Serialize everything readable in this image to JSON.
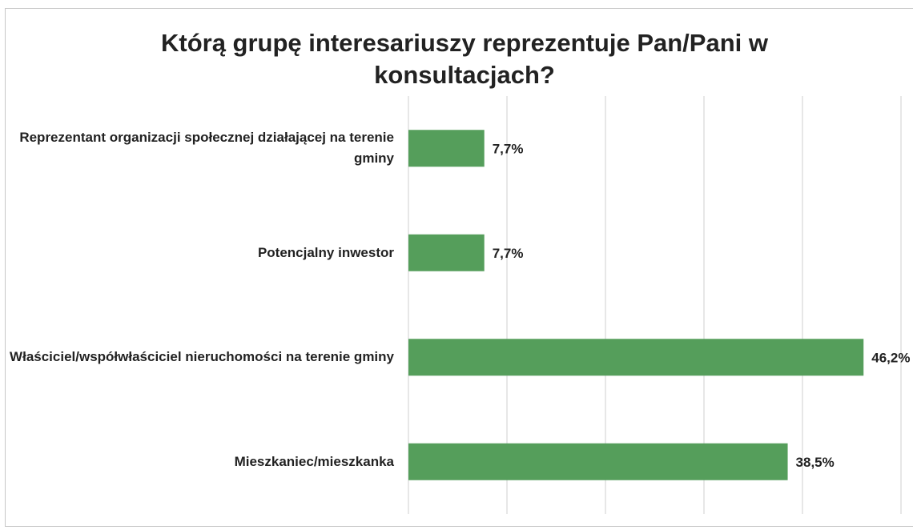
{
  "chart_data": {
    "type": "bar",
    "orientation": "horizontal",
    "title": "Którą grupę interesariuszy reprezentuje Pan/Pani w konsultacjach?",
    "categories": [
      "Reprezentant organizacji społecznej działającej na terenie gminy",
      "Potencjalny inwestor",
      "Właściciel/współwłaściciel nieruchomości na terenie gminy",
      "Mieszkaniec/mieszkanka"
    ],
    "values": [
      7.7,
      7.7,
      46.2,
      38.5
    ],
    "value_labels": [
      "7,7%",
      "7,7%",
      "46,2%",
      "38,5%"
    ],
    "color": "#559e5b",
    "xlim": [
      0,
      50
    ],
    "xticks": [
      0,
      10,
      20,
      30,
      40,
      50
    ],
    "grid": true
  }
}
